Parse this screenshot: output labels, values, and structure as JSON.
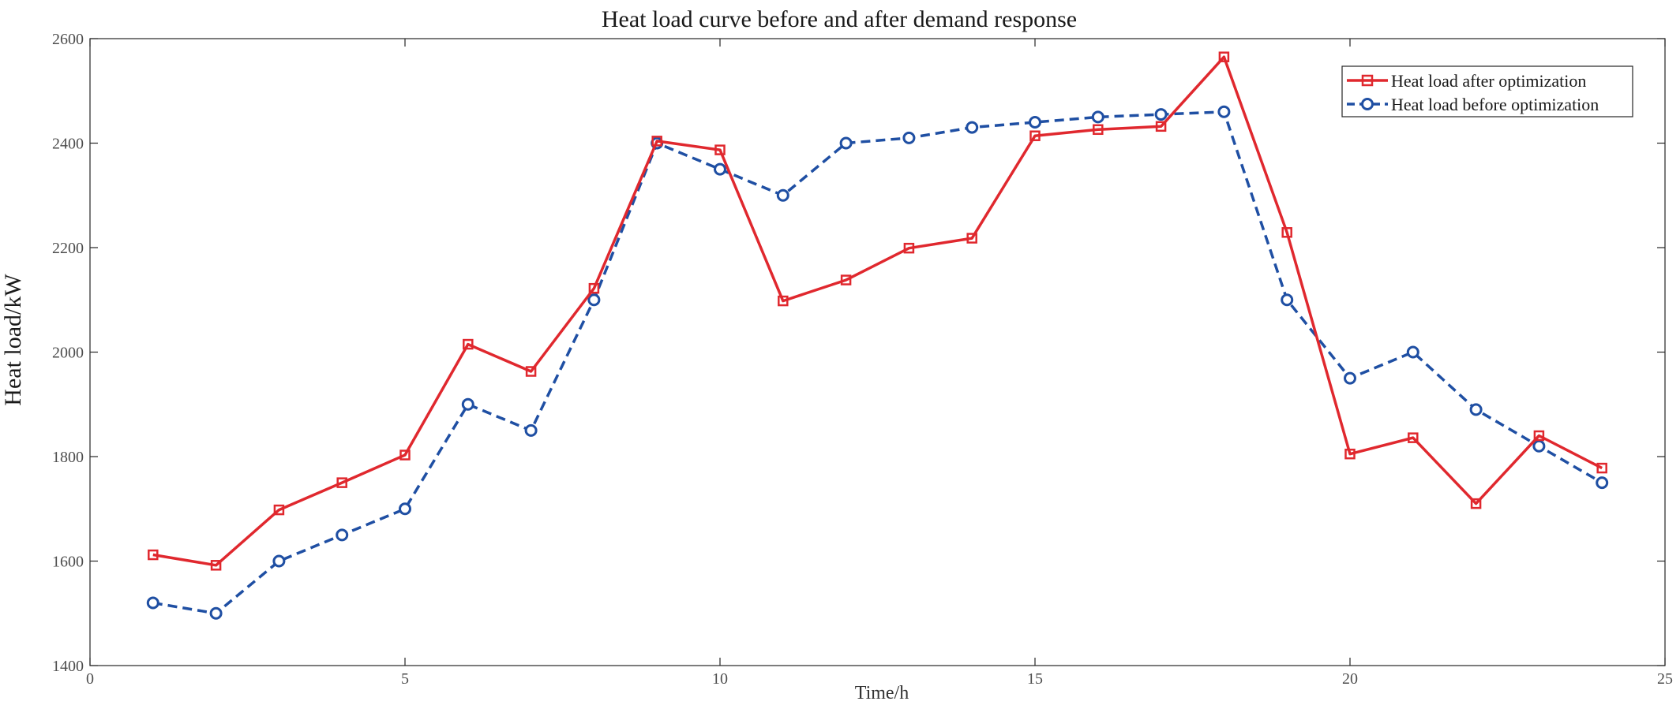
{
  "chart_data": {
    "type": "line",
    "title": "Heat load curve before and after demand response",
    "xlabel": "Time/h",
    "ylabel": "Heat load/kW",
    "xlim": [
      0,
      25
    ],
    "ylim": [
      1400,
      2600
    ],
    "xticks": [
      0,
      5,
      10,
      15,
      20,
      25
    ],
    "yticks": [
      1400,
      1600,
      1800,
      2000,
      2200,
      2400,
      2600
    ],
    "grid": false,
    "legend_position": "top-right",
    "x": [
      1,
      2,
      3,
      4,
      5,
      6,
      7,
      8,
      9,
      10,
      11,
      12,
      13,
      14,
      15,
      16,
      17,
      18,
      19,
      20,
      21,
      22,
      23,
      24
    ],
    "series": [
      {
        "name": "Heat load after optimization",
        "color": "#e0282e",
        "style": "solid",
        "marker": "square",
        "values": [
          1612,
          1592,
          1698,
          1750,
          1803,
          2015,
          1963,
          2122,
          2404,
          2387,
          2098,
          2138,
          2199,
          2218,
          2414,
          2426,
          2432,
          2565,
          2229,
          1805,
          1836,
          1710,
          1840,
          1778
        ]
      },
      {
        "name": "Heat load before optimization",
        "color": "#1f4fa3",
        "style": "dashed",
        "marker": "circle",
        "values": [
          1520,
          1500,
          1600,
          1650,
          1700,
          1900,
          1850,
          2100,
          2400,
          2350,
          2300,
          2400,
          2410,
          2430,
          2440,
          2450,
          2455,
          2460,
          2100,
          1950,
          2000,
          1890,
          1820,
          1750
        ]
      }
    ]
  }
}
